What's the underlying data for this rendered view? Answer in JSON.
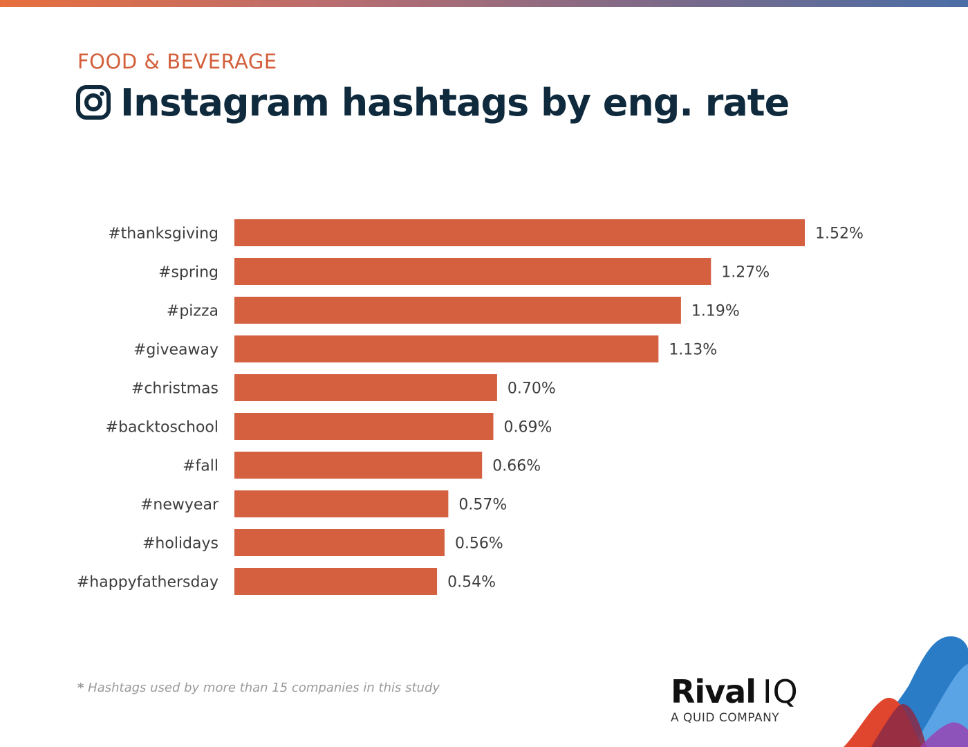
{
  "header": {
    "category": "FOOD & BEVERAGE",
    "title": "Instagram hashtags by eng. rate",
    "icon": "instagram-icon"
  },
  "chart_data": {
    "type": "bar",
    "orientation": "horizontal",
    "title": "Instagram hashtags by eng. rate",
    "categories": [
      "#thanksgiving",
      "#spring",
      "#pizza",
      "#giveaway",
      "#christmas",
      "#backtoschool",
      "#fall",
      "#newyear",
      "#holidays",
      "#happyfathersday"
    ],
    "values": [
      1.52,
      1.27,
      1.19,
      1.13,
      0.7,
      0.69,
      0.66,
      0.57,
      0.56,
      0.54
    ],
    "value_labels": [
      "1.52%",
      "1.27%",
      "1.19%",
      "1.13%",
      "0.70%",
      "0.69%",
      "0.66%",
      "0.57%",
      "0.56%",
      "0.54%"
    ],
    "xlim": [
      0,
      1.52
    ],
    "grid": false,
    "bar_color": "#d46040",
    "label_color": "#3d3d3d"
  },
  "footnote": {
    "star": "*",
    "text": "Hashtags used by more than 15 companies in this study"
  },
  "logo": {
    "name_bold": "Rival",
    "name_light": "IQ",
    "tagline": "A QUID COMPANY"
  },
  "colors": {
    "accent": "#d35f3b",
    "title": "#0f2a3d",
    "corner_blue": "#2a7cc7",
    "corner_red": "#e0452d"
  }
}
